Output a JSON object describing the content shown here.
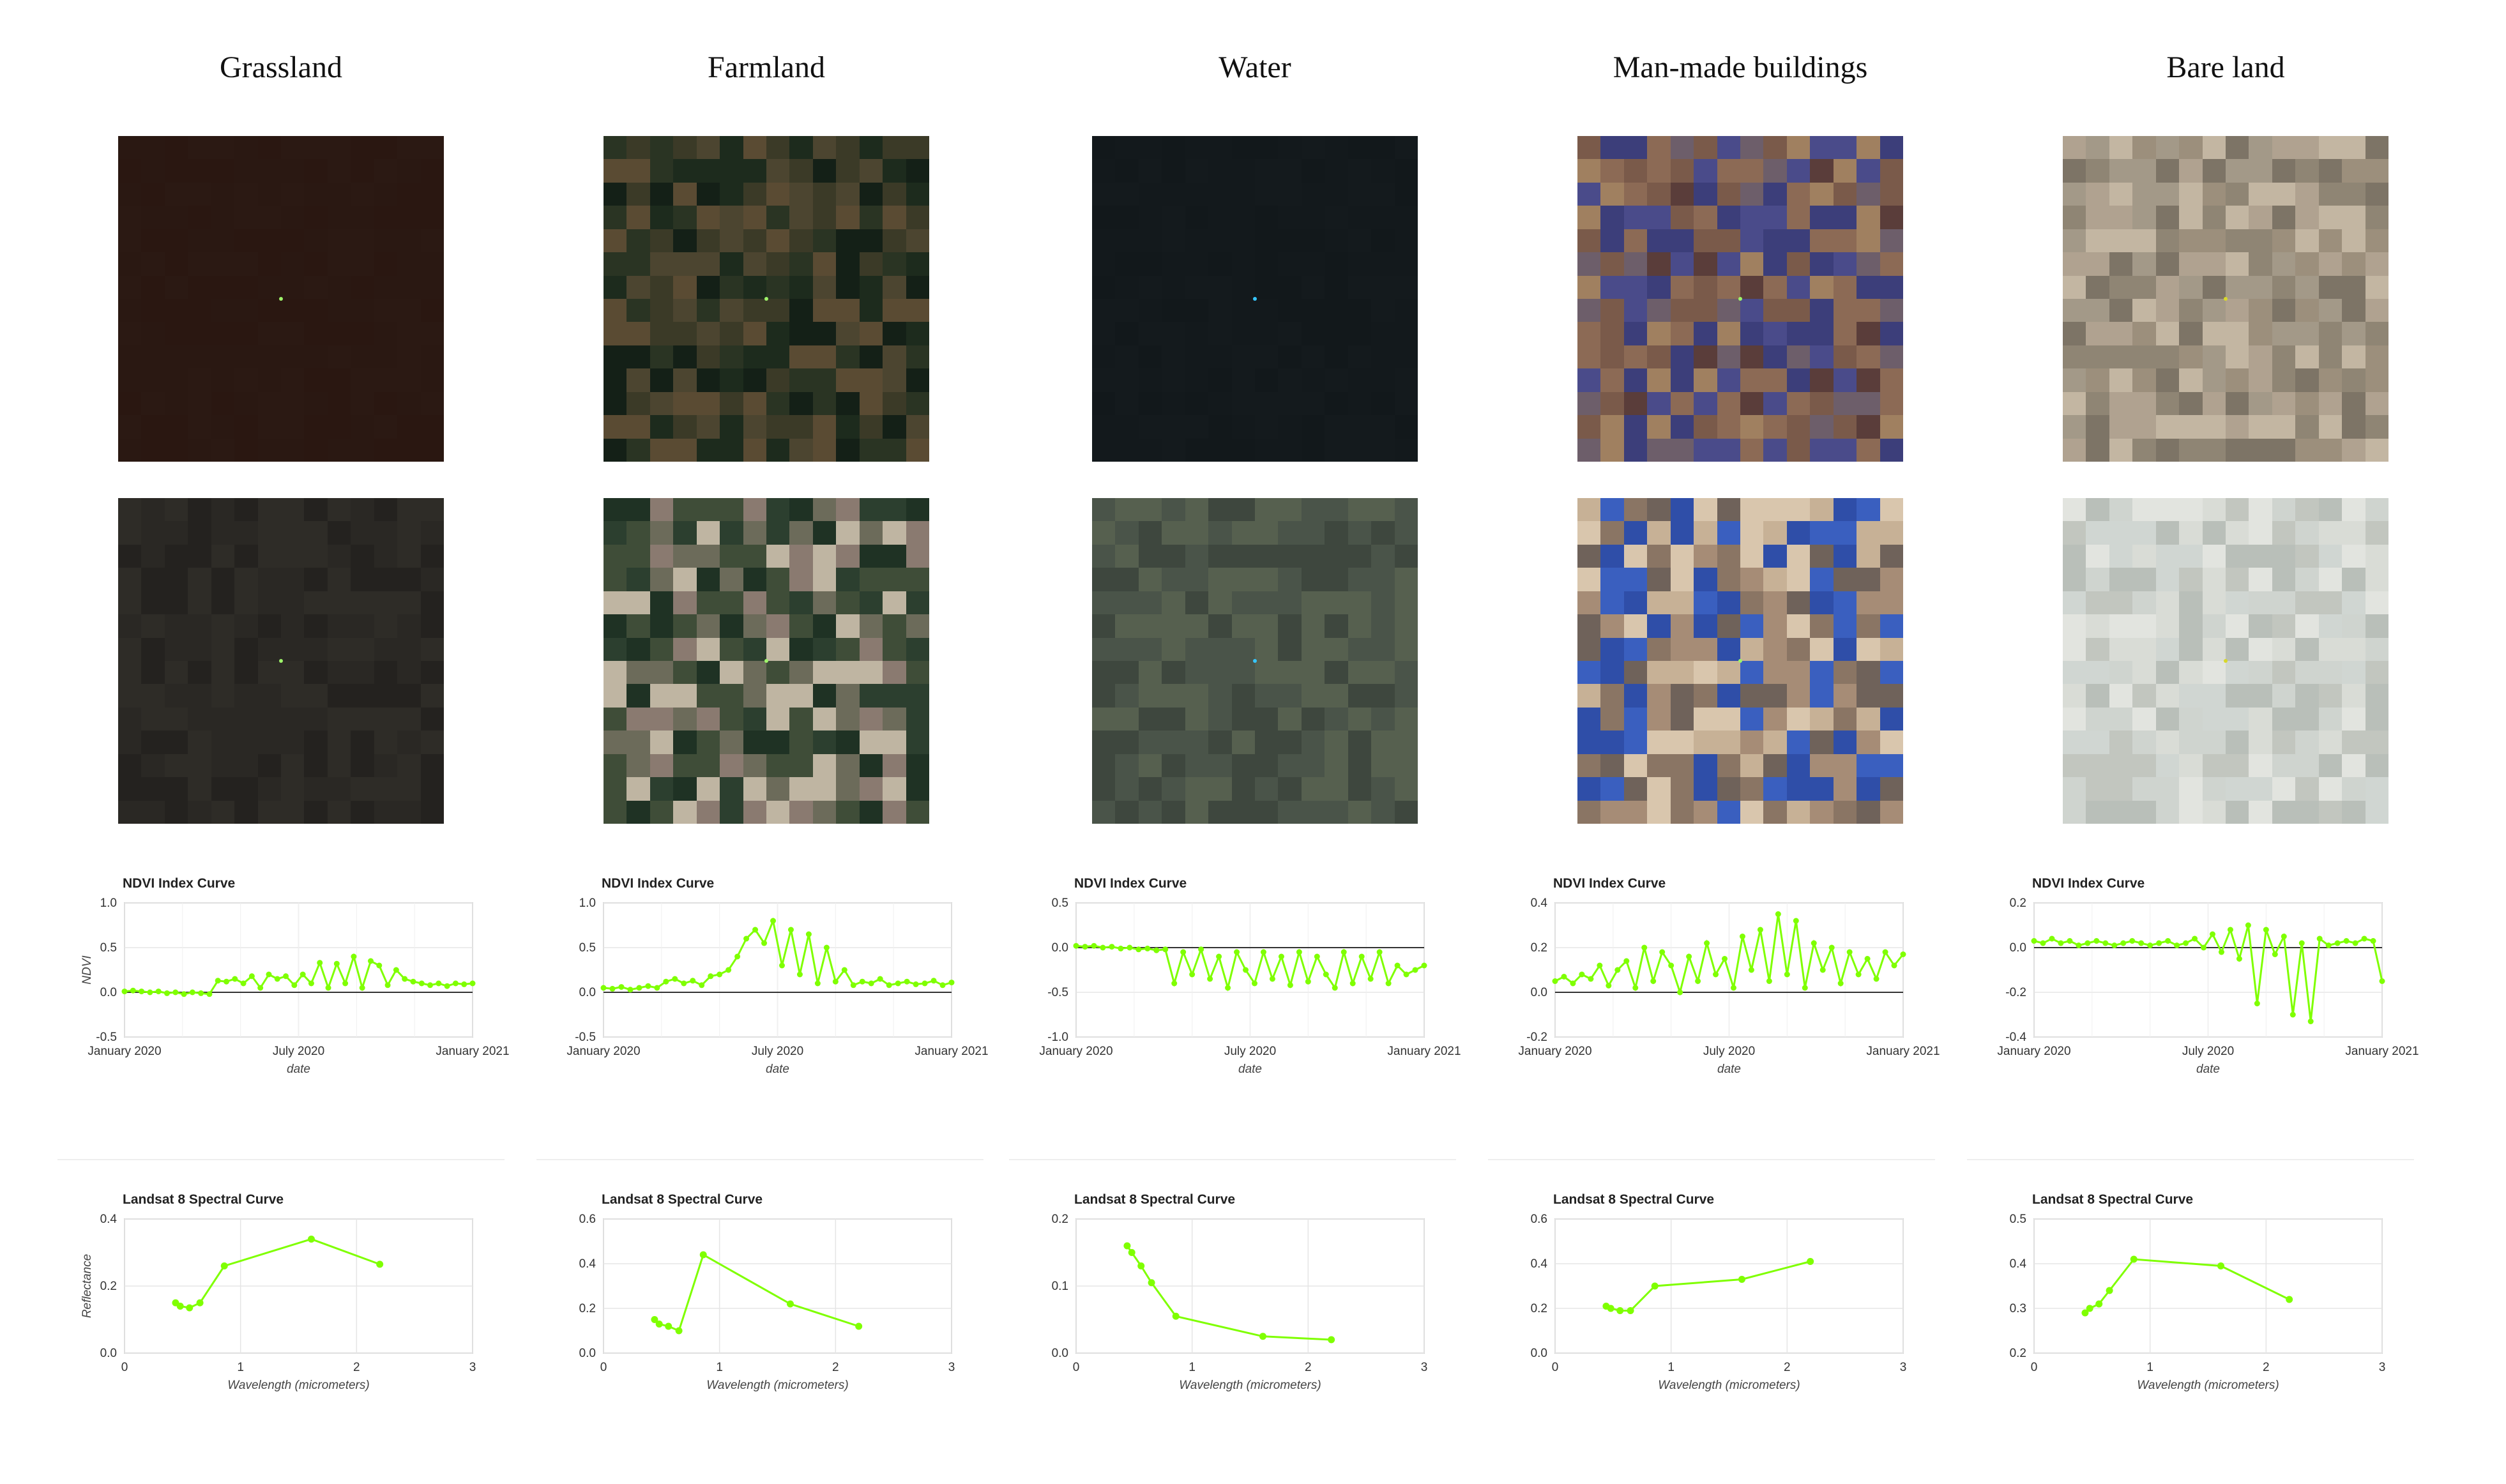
{
  "columns": [
    {
      "title": "Grassland"
    },
    {
      "title": "Farmland"
    },
    {
      "title": "Water"
    },
    {
      "title": "Man-made buildings"
    },
    {
      "title": "Bare land"
    }
  ],
  "chart_data": [
    {
      "type": "line",
      "panel": "Grassland",
      "title": "NDVI Index Curve",
      "xlabel": "date",
      "ylabel": "NDVI",
      "xticks": [
        "January 2020",
        "July 2020",
        "January 2021"
      ],
      "ylim": [
        -0.5,
        1.0
      ],
      "yticks": [
        "1.0",
        "0.5",
        "0.0",
        "-0.5"
      ],
      "x_range": [
        "2020-01-01",
        "2021-01-01"
      ],
      "grid": true,
      "series": [
        {
          "values": [
            0.01,
            0.02,
            0.01,
            0.0,
            0.01,
            -0.01,
            0.0,
            -0.02,
            0.0,
            -0.01,
            -0.02,
            0.13,
            0.12,
            0.15,
            0.1,
            0.18,
            0.05,
            0.2,
            0.15,
            0.18,
            0.08,
            0.2,
            0.1,
            0.33,
            0.05,
            0.32,
            0.1,
            0.4,
            0.05,
            0.35,
            0.3,
            0.08,
            0.25,
            0.15,
            0.12,
            0.1,
            0.08,
            0.1,
            0.07,
            0.1,
            0.09,
            0.1
          ]
        }
      ]
    },
    {
      "type": "line",
      "panel": "Farmland",
      "title": "NDVI Index Curve",
      "xlabel": "date",
      "ylabel": "",
      "xticks": [
        "January 2020",
        "July 2020",
        "January 2021"
      ],
      "ylim": [
        -0.5,
        1.0
      ],
      "yticks": [
        "1.0",
        "0.5",
        "0.0",
        "-0.5"
      ],
      "x_range": [
        "2020-01-01",
        "2021-01-01"
      ],
      "grid": true,
      "series": [
        {
          "values": [
            0.05,
            0.04,
            0.06,
            0.03,
            0.05,
            0.07,
            0.05,
            0.12,
            0.15,
            0.1,
            0.13,
            0.08,
            0.18,
            0.2,
            0.25,
            0.4,
            0.6,
            0.7,
            0.55,
            0.8,
            0.3,
            0.7,
            0.2,
            0.65,
            0.1,
            0.5,
            0.12,
            0.25,
            0.08,
            0.12,
            0.1,
            0.15,
            0.08,
            0.1,
            0.12,
            0.09,
            0.1,
            0.13,
            0.08,
            0.11
          ]
        }
      ]
    },
    {
      "type": "line",
      "panel": "Water",
      "title": "NDVI Index Curve",
      "xlabel": "date",
      "ylabel": "",
      "xticks": [
        "January 2020",
        "July 2020",
        "January 2021"
      ],
      "ylim": [
        -1.0,
        0.5
      ],
      "yticks": [
        "0.5",
        "0.0",
        "-0.5",
        "-1.0"
      ],
      "x_range": [
        "2020-01-01",
        "2021-01-01"
      ],
      "grid": true,
      "series": [
        {
          "values": [
            0.02,
            0.01,
            0.02,
            0.0,
            0.01,
            -0.01,
            0.0,
            -0.02,
            -0.01,
            -0.03,
            -0.02,
            -0.4,
            -0.05,
            -0.3,
            -0.02,
            -0.35,
            -0.1,
            -0.45,
            -0.05,
            -0.25,
            -0.4,
            -0.05,
            -0.35,
            -0.1,
            -0.42,
            -0.05,
            -0.38,
            -0.1,
            -0.3,
            -0.45,
            -0.05,
            -0.4,
            -0.1,
            -0.35,
            -0.05,
            -0.4,
            -0.2,
            -0.3,
            -0.25,
            -0.2
          ]
        }
      ]
    },
    {
      "type": "line",
      "panel": "Man-made buildings",
      "title": "NDVI Index Curve",
      "xlabel": "date",
      "ylabel": "",
      "xticks": [
        "January 2020",
        "July 2020",
        "January 2021"
      ],
      "ylim": [
        -0.2,
        0.4
      ],
      "yticks": [
        "0.4",
        "0.2",
        "0.0",
        "-0.2"
      ],
      "x_range": [
        "2020-01-01",
        "2021-01-01"
      ],
      "grid": true,
      "series": [
        {
          "values": [
            0.05,
            0.07,
            0.04,
            0.08,
            0.06,
            0.12,
            0.03,
            0.1,
            0.14,
            0.02,
            0.2,
            0.05,
            0.18,
            0.12,
            0.0,
            0.16,
            0.05,
            0.22,
            0.08,
            0.15,
            0.02,
            0.25,
            0.1,
            0.28,
            0.05,
            0.35,
            0.08,
            0.32,
            0.02,
            0.22,
            0.1,
            0.2,
            0.04,
            0.18,
            0.08,
            0.15,
            0.06,
            0.18,
            0.12,
            0.17
          ]
        }
      ]
    },
    {
      "type": "line",
      "panel": "Bare land",
      "title": "NDVI Index Curve",
      "xlabel": "date",
      "ylabel": "",
      "xticks": [
        "January 2020",
        "July 2020",
        "January 2021"
      ],
      "ylim": [
        -0.4,
        0.2
      ],
      "yticks": [
        "0.2",
        "0.0",
        "-0.2",
        "-0.4"
      ],
      "x_range": [
        "2020-01-01",
        "2021-01-01"
      ],
      "grid": true,
      "series": [
        {
          "values": [
            0.03,
            0.02,
            0.04,
            0.02,
            0.03,
            0.01,
            0.02,
            0.03,
            0.02,
            0.01,
            0.02,
            0.03,
            0.02,
            0.01,
            0.02,
            0.03,
            0.01,
            0.02,
            0.04,
            0.0,
            0.06,
            -0.02,
            0.08,
            -0.05,
            0.1,
            -0.25,
            0.08,
            -0.03,
            0.05,
            -0.3,
            0.02,
            -0.33,
            0.04,
            0.01,
            0.02,
            0.03,
            0.02,
            0.04,
            0.03,
            -0.15
          ]
        }
      ]
    }
  ],
  "spectral_chart_data": [
    {
      "type": "line",
      "panel": "Grassland",
      "title": "Landsat 8 Spectral Curve",
      "xlabel": "Wavelength (micrometers)",
      "ylabel": "Reflectance",
      "xlim": [
        0,
        3
      ],
      "xticks": [
        "0",
        "1",
        "2",
        "3"
      ],
      "ylim": [
        0.0,
        0.4
      ],
      "yticks": [
        "0.4",
        "0.2",
        "0.0"
      ],
      "x": [
        0.44,
        0.48,
        0.56,
        0.65,
        0.86,
        1.61,
        2.2
      ],
      "series": [
        {
          "values": [
            0.15,
            0.14,
            0.135,
            0.15,
            0.26,
            0.34,
            0.265
          ]
        }
      ]
    },
    {
      "type": "line",
      "panel": "Farmland",
      "title": "Landsat 8 Spectral Curve",
      "xlabel": "Wavelength (micrometers)",
      "ylabel": "",
      "xlim": [
        0,
        3
      ],
      "xticks": [
        "0",
        "1",
        "2",
        "3"
      ],
      "ylim": [
        0.0,
        0.6
      ],
      "yticks": [
        "0.6",
        "0.4",
        "0.2",
        "0.0"
      ],
      "x": [
        0.44,
        0.48,
        0.56,
        0.65,
        0.86,
        1.61,
        2.2
      ],
      "series": [
        {
          "values": [
            0.15,
            0.13,
            0.12,
            0.1,
            0.44,
            0.22,
            0.12
          ]
        }
      ]
    },
    {
      "type": "line",
      "panel": "Water",
      "title": "Landsat 8 Spectral Curve",
      "xlabel": "Wavelength (micrometers)",
      "ylabel": "",
      "xlim": [
        0,
        3
      ],
      "xticks": [
        "0",
        "1",
        "2",
        "3"
      ],
      "ylim": [
        0.0,
        0.2
      ],
      "yticks": [
        "0.2",
        "0.1",
        "0.0"
      ],
      "x": [
        0.44,
        0.48,
        0.56,
        0.65,
        0.86,
        1.61,
        2.2
      ],
      "series": [
        {
          "values": [
            0.16,
            0.15,
            0.13,
            0.105,
            0.055,
            0.025,
            0.02
          ]
        }
      ]
    },
    {
      "type": "line",
      "panel": "Man-made buildings",
      "title": "Landsat 8 Spectral Curve",
      "xlabel": "Wavelength (micrometers)",
      "ylabel": "",
      "xlim": [
        0,
        3
      ],
      "xticks": [
        "0",
        "1",
        "2",
        "3"
      ],
      "ylim": [
        0.0,
        0.6
      ],
      "yticks": [
        "0.6",
        "0.4",
        "0.2",
        "0.0"
      ],
      "x": [
        0.44,
        0.48,
        0.56,
        0.65,
        0.86,
        1.61,
        2.2
      ],
      "series": [
        {
          "values": [
            0.21,
            0.2,
            0.19,
            0.19,
            0.3,
            0.33,
            0.41
          ]
        }
      ]
    },
    {
      "type": "line",
      "panel": "Bare land",
      "title": "Landsat 8 Spectral Curve",
      "xlabel": "Wavelength (micrometers)",
      "ylabel": "",
      "xlim": [
        0,
        3
      ],
      "xticks": [
        "0",
        "1",
        "2",
        "3"
      ],
      "ylim": [
        0.2,
        0.5
      ],
      "yticks": [
        "0.5",
        "0.4",
        "0.3",
        "0.2"
      ],
      "x": [
        0.44,
        0.48,
        0.56,
        0.65,
        0.86,
        1.61,
        2.2
      ],
      "series": [
        {
          "values": [
            0.29,
            0.3,
            0.31,
            0.34,
            0.41,
            0.395,
            0.32
          ]
        }
      ]
    }
  ],
  "imagery": [
    {
      "low_palette": [
        "#2a1812",
        "#2b1913",
        "#2a1711"
      ],
      "high_palette": [
        "#2a2824",
        "#2e2c27",
        "#24221f"
      ],
      "pin_color": "#9ef46a"
    },
    {
      "low_palette": [
        "#3b3a27",
        "#1d2b1d",
        "#5a4b33",
        "#2a3423",
        "#142017",
        "#4c4530"
      ],
      "high_palette": [
        "#8a7a70",
        "#2c3f2f",
        "#bfb5a2",
        "#3f4d38",
        "#6c6b5a",
        "#1f3224"
      ],
      "pin_color": "#9ef46a"
    },
    {
      "low_palette": [
        "#13191c",
        "#141a1d",
        "#12181b"
      ],
      "high_palette": [
        "#4a5449",
        "#3e473e",
        "#56604f"
      ],
      "pin_color": "#36c6ff"
    },
    {
      "low_palette": [
        "#7a5a4a",
        "#4a4b8a",
        "#8c6a55",
        "#5a3d3a",
        "#6d5e6a",
        "#a08060",
        "#3c3e7a"
      ],
      "high_palette": [
        "#a68c76",
        "#2f4ea8",
        "#c7b196",
        "#8a7564",
        "#d9c6ad",
        "#3a5fbf",
        "#6f625a"
      ],
      "pin_color": "#9ef46a"
    },
    {
      "low_palette": [
        "#9c8f7c",
        "#b0a290",
        "#7d7466",
        "#c3b6a2",
        "#8f8574",
        "#a39988"
      ],
      "high_palette": [
        "#cfd4cf",
        "#d9dcd6",
        "#c2c6bf",
        "#e2e4df",
        "#b9bfb9",
        "#d0d6d2"
      ],
      "pin_color": "#d8d82a"
    }
  ],
  "line_color": "#7fff00"
}
